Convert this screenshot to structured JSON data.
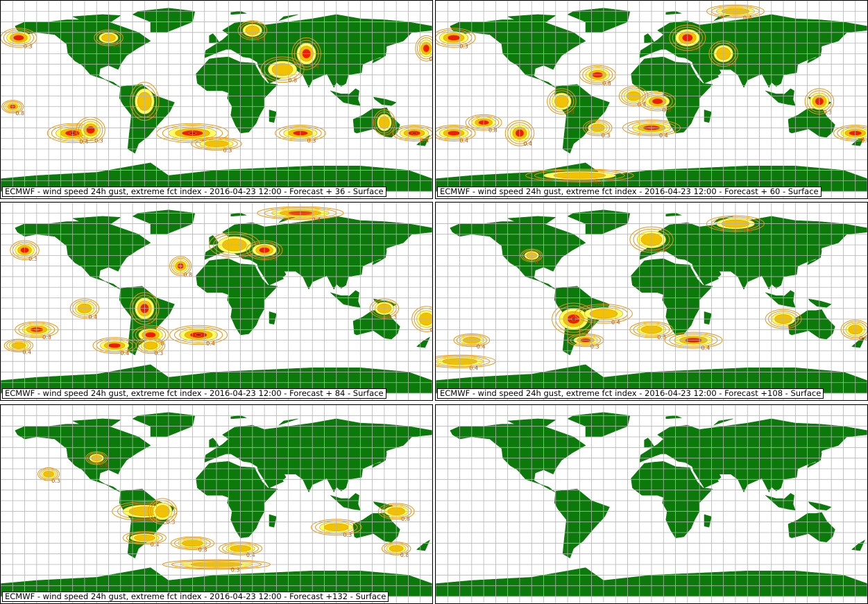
{
  "layout": {
    "columns": 2,
    "rows": 3
  },
  "colors": {
    "land": "#0b7a0b",
    "ocean": "#ffffff",
    "grid": "#b4b4b4",
    "contour": "#e8960c",
    "level_low": "#ffff66",
    "level_mid": "#f2c200",
    "level_high": "#ee1c00",
    "level_max": "#a00000",
    "border": "#000000"
  },
  "panels": [
    {
      "id": "p1",
      "caption": "ECMWF - wind speed 24h gust, extreme fct index - 2016-04-23 12:00 - Forecast + 36 - Surface",
      "has_data": true,
      "labels": [
        "0.3",
        "0.8",
        "0.4"
      ]
    },
    {
      "id": "p2",
      "caption": "ECMWF - wind speed 24h gust, extreme fct index - 2016-04-23 12:00 - Forecast + 60 - Surface",
      "has_data": true,
      "labels": [
        "0.3",
        "0.8",
        "0.4"
      ]
    },
    {
      "id": "p3",
      "caption": "ECMWF - wind speed 24h gust, extreme fct index - 2016-04-23 12:00 - Forecast + 84 - Surface",
      "has_data": true,
      "labels": [
        "0.3",
        "0.8",
        "0.4"
      ]
    },
    {
      "id": "p4",
      "caption": "ECMWF - wind speed 24h gust, extreme fct index - 2016-04-23 12:00 - Forecast +108 - Surface",
      "has_data": true,
      "labels": [
        "0.3",
        "0.8",
        "0.4"
      ]
    },
    {
      "id": "p5",
      "caption": "ECMWF - wind speed 24h gust, extreme fct index - 2016-04-23 12:00 - Forecast +132 - Surface",
      "has_data": true,
      "labels": [
        "0.3",
        "0.8",
        "0.4"
      ]
    },
    {
      "id": "p6",
      "caption": "",
      "has_data": false,
      "labels": []
    }
  ]
}
